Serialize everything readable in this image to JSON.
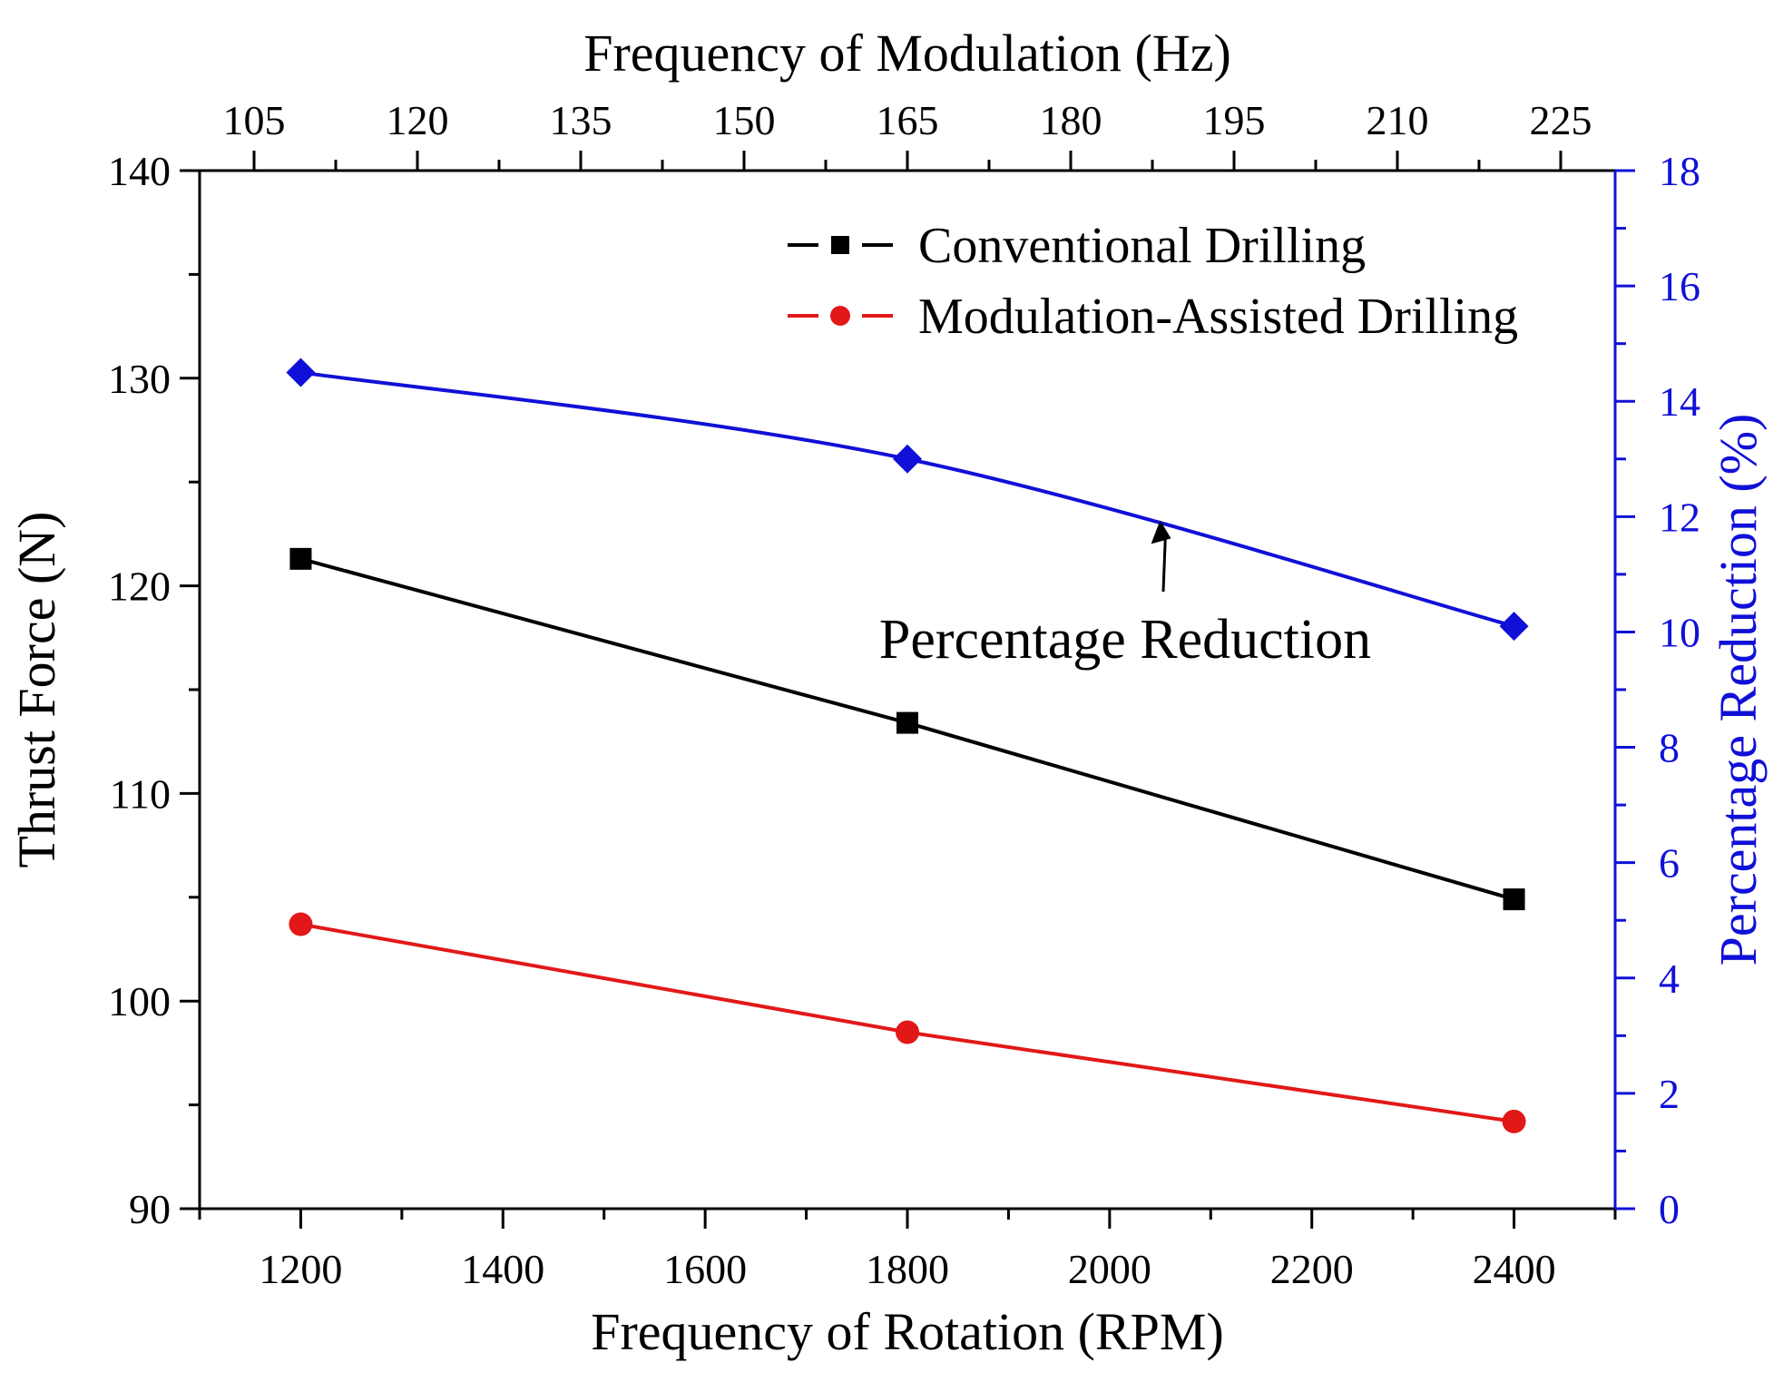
{
  "chart_data": {
    "type": "line",
    "title": "",
    "xlabel": "Frequency of Rotation (RPM)",
    "x2label": "Frequency of Modulation (Hz)",
    "ylabel": "Thrust Force (N)",
    "y2label": "Percentage Reduction (%)",
    "xlim": [
      1100,
      2500
    ],
    "x2lim": [
      100,
      230
    ],
    "ylim": [
      90,
      140
    ],
    "y2lim": [
      0,
      18
    ],
    "x_ticks": [
      1200,
      1400,
      1600,
      1800,
      2000,
      2200,
      2400
    ],
    "x_tick_labels": [
      "1200",
      "1400",
      "1600",
      "1800",
      "2000",
      "2200",
      "2400"
    ],
    "x2_ticks": [
      105,
      120,
      135,
      150,
      165,
      180,
      195,
      210,
      225
    ],
    "x2_tick_labels": [
      "105",
      "120",
      "135",
      "150",
      "165",
      "180",
      "195",
      "210",
      "225"
    ],
    "y_ticks": [
      90,
      100,
      110,
      120,
      130,
      140
    ],
    "y_tick_labels": [
      "90",
      "100",
      "110",
      "120",
      "130",
      "140"
    ],
    "y2_ticks": [
      0,
      2,
      4,
      6,
      8,
      10,
      12,
      14,
      16,
      18
    ],
    "y2_tick_labels": [
      "0",
      "2",
      "4",
      "6",
      "8",
      "10",
      "12",
      "14",
      "16",
      "18"
    ],
    "grid": false,
    "legend_position": "top-right",
    "series": [
      {
        "name": "Conventional Drilling",
        "axis": "left",
        "color": "#000000",
        "marker": "square",
        "x": [
          1200,
          1800,
          2400
        ],
        "values": [
          121.3,
          113.4,
          104.9
        ]
      },
      {
        "name": "Modulation-Assisted Drilling",
        "axis": "left",
        "color": "#e21818",
        "marker": "circle",
        "x": [
          1200,
          1800,
          2400
        ],
        "values": [
          103.7,
          98.5,
          94.2
        ]
      },
      {
        "name": "Percentage Reduction",
        "axis": "right",
        "color": "#1010d8",
        "marker": "diamond",
        "x": [
          1200,
          1800,
          2400
        ],
        "values": [
          14.5,
          13.0,
          10.1
        ]
      }
    ],
    "annotations": [
      {
        "text": "Percentage Reduction",
        "points_to_x": 2050,
        "points_to_y2": 12.0
      }
    ],
    "colors": {
      "right_axis": "#1010d8",
      "axis": "#000000"
    }
  }
}
